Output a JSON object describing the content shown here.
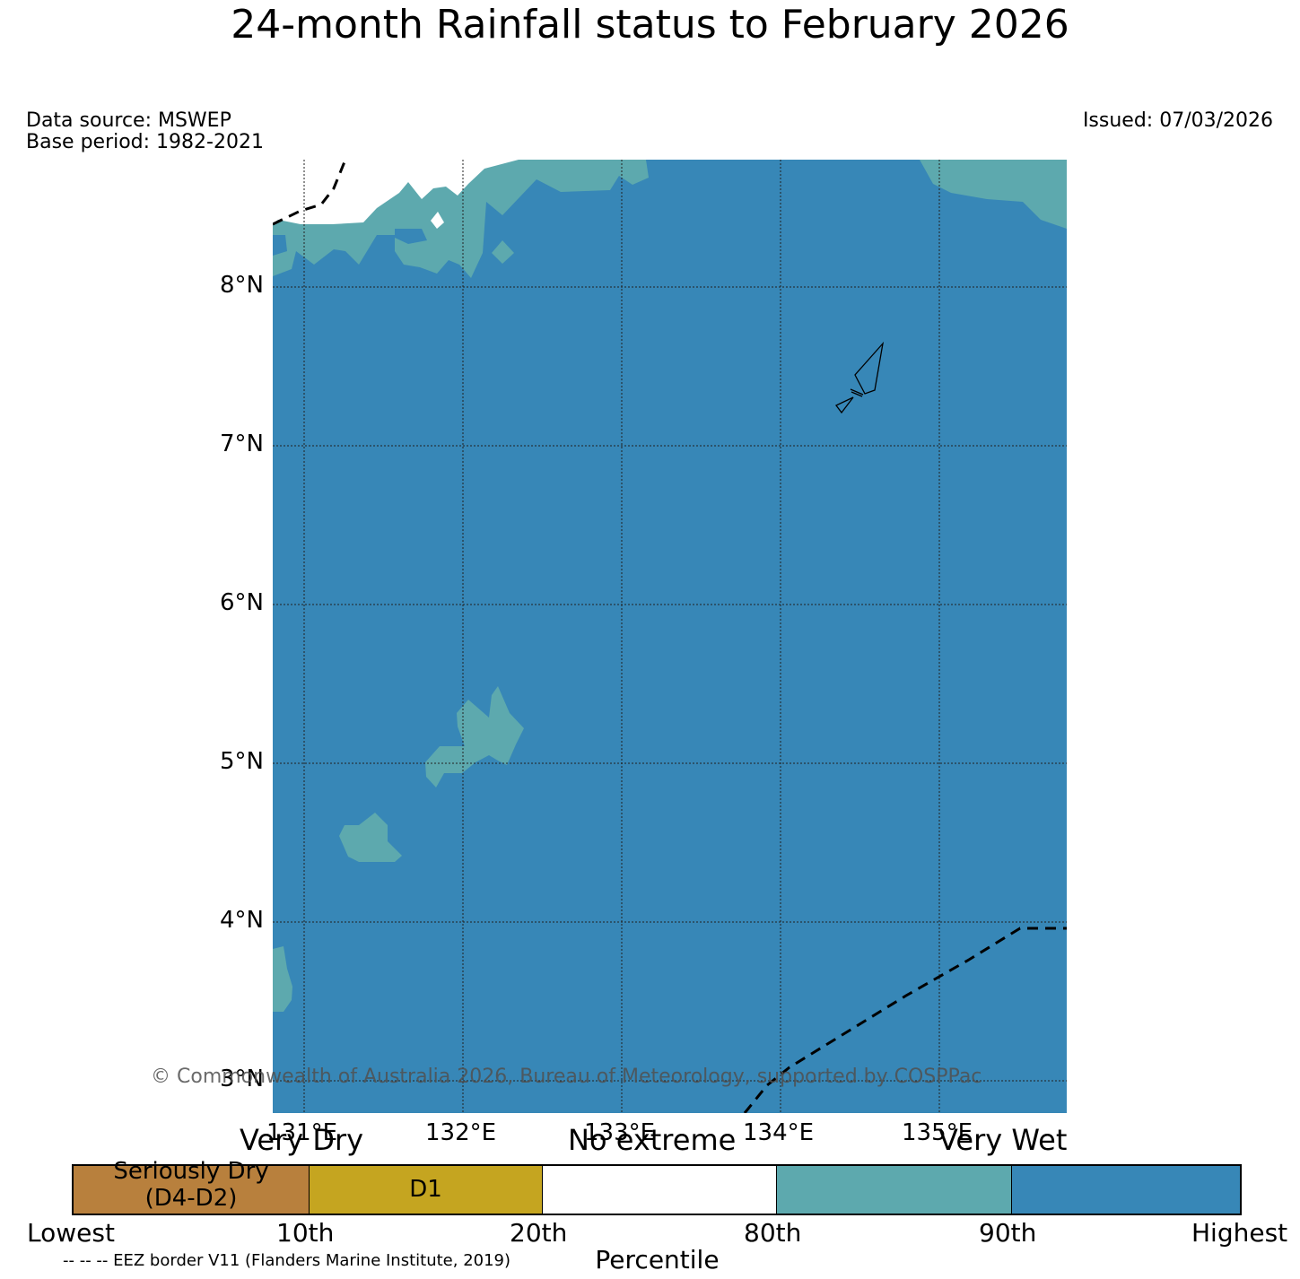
{
  "title": "24-month Rainfall status to February 2026",
  "data_source": "Data source: MSWEP",
  "base_period": "Base period: 1982-2021",
  "issued": "Issued: 07/03/2026",
  "copyright": "© Commonwealth of Australia 2026, Bureau of Meteorology, supported by COSPPac",
  "map": {
    "lat_labels": [
      "8°N",
      "7°N",
      "6°N",
      "5°N",
      "4°N",
      "3°N"
    ],
    "lon_labels": [
      "131°E",
      "132°E",
      "133°E",
      "134°E",
      "135°E"
    ],
    "colors": {
      "very_wet": "#3787b7",
      "wet": "#5da9ae",
      "no_extreme": "#ffffff"
    }
  },
  "legend": {
    "category_very_dry": "Very Dry",
    "category_no_extreme": "No extreme",
    "category_very_wet": "Very Wet",
    "segments": [
      {
        "label_line1": "Seriously Dry",
        "label_line2": "(D4-D2)",
        "color": "#b8803d"
      },
      {
        "label_line1": "D1",
        "label_line2": "",
        "color": "#c5a520"
      },
      {
        "label_line1": "",
        "label_line2": "",
        "color": "#ffffff"
      },
      {
        "label_line1": "",
        "label_line2": "",
        "color": "#5da9ae"
      },
      {
        "label_line1": "",
        "label_line2": "",
        "color": "#3787b7"
      }
    ],
    "ticks": [
      "Lowest",
      "10th",
      "20th",
      "80th",
      "90th",
      "Highest"
    ],
    "xlabel": "Percentile"
  },
  "eez_note": "-- -- -- EEZ border V11 (Flanders Marine Institute, 2019)"
}
